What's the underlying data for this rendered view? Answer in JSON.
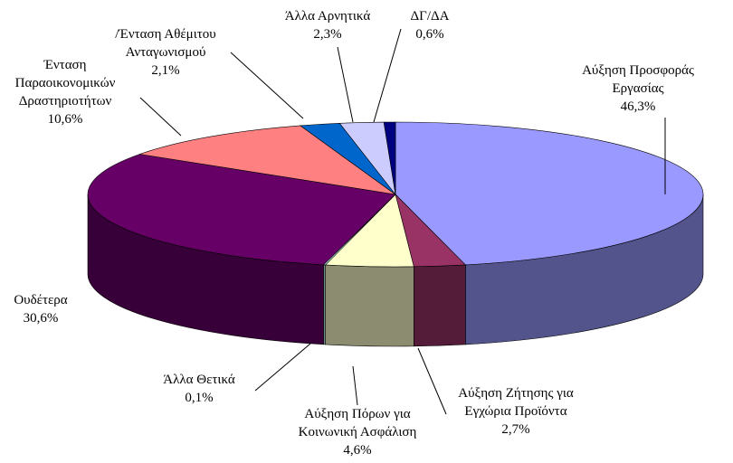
{
  "chart_data": {
    "type": "pie3d",
    "categories": [
      "Αύξηση Προσφοράς Εργασίας",
      "Αύξηση Ζήτησης για Εγχώρια Προϊόντα",
      "Αύξηση Πόρων για Κοινωνική Ασφάλιση",
      "Άλλα Θετικά",
      "Ουδέτερα",
      "Ένταση Παραοικονομικών Δραστηριοτήτων",
      "/Ένταση Αθέμιτου Ανταγωνισμού",
      "Άλλα Αρνητικά",
      "ΔΓ/ΔΑ"
    ],
    "values": [
      46.3,
      2.7,
      4.6,
      0.1,
      30.6,
      10.6,
      2.1,
      2.3,
      0.6
    ],
    "value_labels": [
      "46,3%",
      "2,7%",
      "4,6%",
      "0,1%",
      "30,6%",
      "10,6%",
      "2,1%",
      "2,3%",
      "0,6%"
    ],
    "colors": [
      "#9999ff",
      "#993366",
      "#ffffcc",
      "#ccffff",
      "#660066",
      "#ff8080",
      "#0066cc",
      "#ccccff",
      "#000080"
    ]
  }
}
